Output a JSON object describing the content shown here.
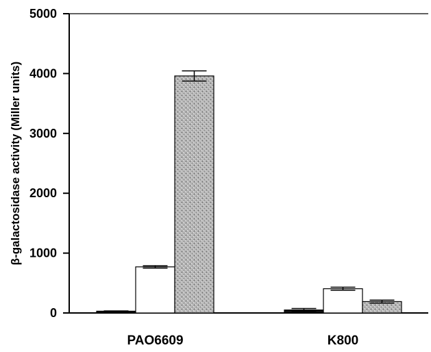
{
  "chart_data": {
    "type": "bar",
    "title": "",
    "xlabel": "",
    "ylabel": "β-galactosidase activity (Miller units)",
    "categories": [
      "PAO6609",
      "K800"
    ],
    "yticks": [
      "0",
      "1000",
      "2000",
      "3000",
      "4000",
      "5000"
    ],
    "ylim": [
      0,
      5000
    ],
    "grid": false,
    "legend": "none",
    "series": [
      {
        "values": [
          30,
          50
        ],
        "errors": [
          5,
          25
        ],
        "fill": "#111111",
        "pattern": "solid"
      },
      {
        "values": [
          770,
          405
        ],
        "errors": [
          20,
          25
        ],
        "fill": "#ffffff",
        "pattern": "solid"
      },
      {
        "values": [
          3960,
          190
        ],
        "errors": [
          85,
          25
        ],
        "fill": "#b5b5b5",
        "pattern": "stipple"
      }
    ]
  }
}
